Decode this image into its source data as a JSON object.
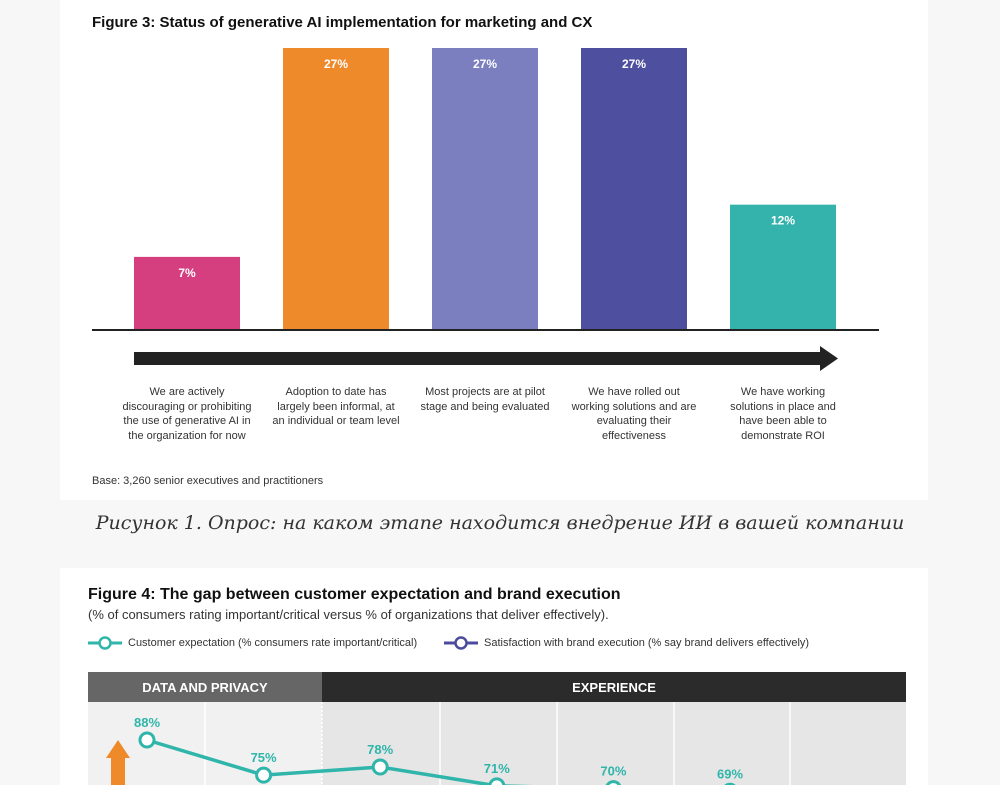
{
  "chart_data": [
    {
      "type": "bar",
      "title": "Figure 3: Status of generative AI implementation for marketing and CX",
      "categories": [
        "We are actively discouraging or prohibiting the use of generative AI in the organization for now",
        "Adoption to date has largely been informal, at an individual or team level",
        "Most projects are at pilot stage and being evaluated",
        "We have rolled out working solutions and are evaluating their effectiveness",
        "We have working solutions in place and have been able to demonstrate ROI"
      ],
      "values": [
        7,
        27,
        27,
        27,
        12
      ],
      "value_labels": [
        "7%",
        "27%",
        "27%",
        "27%",
        "12%"
      ],
      "colors": [
        "#d63f7f",
        "#ef8a2a",
        "#7b7fc0",
        "#4e4f9f",
        "#33b3ab"
      ],
      "ylim": [
        0,
        27
      ],
      "note": "Base: 3,260 senior executives and practitioners"
    },
    {
      "type": "line",
      "title": "Figure 4: The gap between customer expectation and brand execution",
      "subtitle": "(% of consumers rating important/critical versus % of organizations that deliver effectively).",
      "legend": [
        {
          "name": "Customer expectation (% consumers rate important/critical)",
          "color": "#2fb5aa"
        },
        {
          "name": "Satisfaction with brand execution (% say brand delivers effectively)",
          "color": "#4b4b9e"
        }
      ],
      "groups": [
        "DATA AND PRIVACY",
        "EXPERIENCE"
      ],
      "series": [
        {
          "name": "Customer expectation",
          "values": [
            88,
            75,
            78,
            71,
            70,
            69
          ],
          "labels": [
            "88%",
            "75%",
            "78%",
            "71%",
            "70%",
            "69%"
          ]
        }
      ]
    }
  ],
  "caption": "Рисунок 1. Опрос: на каком этапе находится внедрение ИИ в вашей компании"
}
